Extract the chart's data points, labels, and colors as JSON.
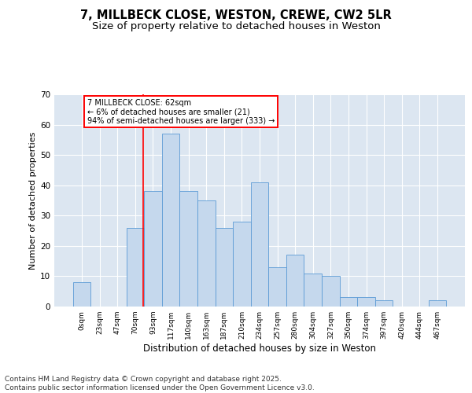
{
  "title_line1": "7, MILLBECK CLOSE, WESTON, CREWE, CW2 5LR",
  "title_line2": "Size of property relative to detached houses in Weston",
  "xlabel": "Distribution of detached houses by size in Weston",
  "ylabel": "Number of detached properties",
  "bar_labels": [
    "0sqm",
    "23sqm",
    "47sqm",
    "70sqm",
    "93sqm",
    "117sqm",
    "140sqm",
    "163sqm",
    "187sqm",
    "210sqm",
    "234sqm",
    "257sqm",
    "280sqm",
    "304sqm",
    "327sqm",
    "350sqm",
    "374sqm",
    "397sqm",
    "420sqm",
    "444sqm",
    "467sqm"
  ],
  "bar_values": [
    8,
    0,
    0,
    26,
    38,
    57,
    38,
    35,
    26,
    28,
    41,
    13,
    17,
    11,
    10,
    3,
    3,
    2,
    0,
    0,
    2
  ],
  "bar_color": "#c5d8ed",
  "bar_edge_color": "#5b9bd5",
  "background_color": "#dce6f1",
  "grid_color": "#ffffff",
  "ylim": [
    0,
    70
  ],
  "yticks": [
    0,
    10,
    20,
    30,
    40,
    50,
    60,
    70
  ],
  "annotation_text": "7 MILLBECK CLOSE: 62sqm\n← 6% of detached houses are smaller (21)\n94% of semi-detached houses are larger (333) →",
  "red_line_x": 3.45,
  "footer_text": "Contains HM Land Registry data © Crown copyright and database right 2025.\nContains public sector information licensed under the Open Government Licence v3.0.",
  "title_fontsize": 10.5,
  "subtitle_fontsize": 9.5,
  "annotation_fontsize": 7,
  "footer_fontsize": 6.5,
  "ylabel_fontsize": 8,
  "xlabel_fontsize": 8.5
}
